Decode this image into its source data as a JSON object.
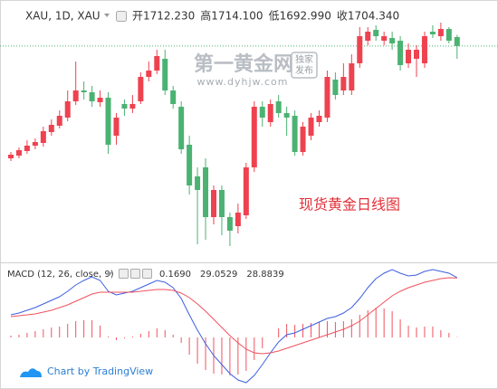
{
  "chart_data": [
    {
      "type": "candlestick",
      "title": "XAU, 1D, XAU",
      "annotation": "现货黄金日线图",
      "watermark": {
        "brand": "第一黄金网",
        "badge": [
          "独家",
          "发布"
        ],
        "site": "www.dyhjw.com"
      },
      "up_color": "#ee4250",
      "down_color": "#4bb272",
      "price_line_color": "#4bb272",
      "ylim": [
        1517,
        1733
      ],
      "series": [
        {
          "name": "开",
          "values": [
            1605,
            1607.4,
            1611.4,
            1616.2,
            1618.6,
            1628.2,
            1633.8,
            1641,
            1655.4,
            1665,
            1663.4,
            1654.6,
            1658.6,
            1625,
            1653,
            1649,
            1655.4,
            1677,
            1682.6,
            1693,
            1665,
            1650.6,
            1617,
            1589,
            1597,
            1553,
            1577,
            1553,
            1545,
            1554.6,
            1597,
            1650.6,
            1637,
            1655.4,
            1645,
            1642.6,
            1610.6,
            1625,
            1637,
            1641,
            1674.6,
            1665,
            1665,
            1689,
            1709,
            1718.6,
            1709,
            1711.4,
            1709,
            1689,
            1693,
            1689,
            1717,
            1713,
            1719.4,
            1712.23
          ],
          "value_labels": [
            null,
            null,
            null,
            null,
            null,
            null,
            null,
            null,
            null,
            null,
            null,
            null,
            null,
            null,
            null,
            null,
            null,
            null,
            null,
            null,
            null,
            null,
            null,
            null,
            null,
            null,
            null,
            null,
            null,
            null,
            null,
            null,
            null,
            null,
            null,
            null,
            null,
            null,
            null,
            null,
            null,
            null,
            null,
            null,
            null,
            null,
            null,
            null,
            null,
            null,
            null,
            null,
            null,
            null,
            null,
            "1712.230"
          ]
        },
        {
          "name": "高",
          "values": [
            1610.6,
            1614.6,
            1621,
            1622.6,
            1633,
            1639.4,
            1647.4,
            1665,
            1690.6,
            1673,
            1669,
            1665,
            1663.4,
            1645,
            1657,
            1661,
            1681,
            1690.6,
            1701,
            1701,
            1669,
            1655.4,
            1625,
            1597,
            1605,
            1581,
            1581,
            1557,
            1565,
            1601,
            1655.4,
            1655.4,
            1657,
            1661,
            1650.6,
            1647.4,
            1637,
            1645,
            1647.4,
            1682.6,
            1681,
            1689,
            1697,
            1721,
            1721,
            1722.6,
            1717,
            1717,
            1713,
            1706.6,
            1705,
            1717,
            1722.6,
            1725,
            1721,
            1714.1
          ],
          "value_labels": [
            null,
            null,
            null,
            null,
            null,
            null,
            null,
            null,
            null,
            null,
            null,
            null,
            null,
            null,
            null,
            null,
            null,
            null,
            null,
            null,
            null,
            null,
            null,
            null,
            null,
            null,
            null,
            null,
            null,
            null,
            null,
            null,
            null,
            null,
            null,
            null,
            null,
            null,
            null,
            null,
            null,
            null,
            null,
            null,
            null,
            null,
            null,
            null,
            null,
            null,
            null,
            null,
            null,
            null,
            null,
            "1714.100"
          ]
        },
        {
          "name": "低",
          "values": [
            1602.6,
            1605,
            1609,
            1613,
            1615.4,
            1625,
            1631.4,
            1637.8,
            1652.2,
            1657,
            1650.6,
            1650.6,
            1609,
            1617,
            1642.6,
            1645,
            1653,
            1673,
            1679.4,
            1661,
            1649,
            1609,
            1573,
            1529,
            1533,
            1546.6,
            1537,
            1527.4,
            1538.6,
            1551.4,
            1593,
            1633,
            1633,
            1641,
            1625,
            1607.4,
            1607.4,
            1621,
            1633,
            1637,
            1657,
            1661,
            1661,
            1685,
            1705,
            1709,
            1705,
            1701,
            1682.6,
            1685,
            1677,
            1685,
            1711.4,
            1709,
            1706.6,
            1692.99
          ],
          "value_labels": [
            null,
            null,
            null,
            null,
            null,
            null,
            null,
            null,
            null,
            null,
            null,
            null,
            null,
            null,
            null,
            null,
            null,
            null,
            null,
            null,
            null,
            null,
            null,
            null,
            null,
            null,
            null,
            null,
            null,
            null,
            null,
            null,
            null,
            null,
            null,
            null,
            null,
            null,
            null,
            null,
            null,
            null,
            null,
            null,
            null,
            null,
            null,
            null,
            null,
            null,
            null,
            null,
            null,
            null,
            null,
            "1692.990"
          ]
        },
        {
          "name": "收",
          "values": [
            1608.2,
            1612.2,
            1616.2,
            1619.4,
            1629,
            1634.6,
            1642.6,
            1655.4,
            1665,
            1663.4,
            1655.4,
            1658.6,
            1617,
            1641,
            1649,
            1653,
            1677,
            1682.6,
            1695.4,
            1665,
            1653,
            1613,
            1581,
            1577,
            1553,
            1577,
            1553,
            1541,
            1557,
            1597,
            1650.6,
            1641,
            1653,
            1645,
            1641,
            1610.6,
            1633,
            1641,
            1642.6,
            1677,
            1661,
            1677,
            1689,
            1713,
            1717,
            1713,
            1713,
            1706.6,
            1687.4,
            1701,
            1701,
            1713,
            1714.6,
            1719.4,
            1709,
            1704.34
          ],
          "value_labels": [
            null,
            null,
            null,
            null,
            null,
            null,
            null,
            null,
            null,
            null,
            null,
            null,
            null,
            null,
            null,
            null,
            null,
            null,
            null,
            null,
            null,
            null,
            null,
            null,
            null,
            null,
            null,
            null,
            null,
            null,
            null,
            null,
            null,
            null,
            null,
            null,
            null,
            null,
            null,
            null,
            null,
            null,
            null,
            null,
            null,
            null,
            null,
            null,
            null,
            null,
            null,
            null,
            null,
            null,
            null,
            "1704.340"
          ]
        }
      ]
    },
    {
      "type": "macd",
      "title": "MACD (12, 26, close, 9)",
      "ylim": [
        -24.2,
        34.32
      ],
      "series": [
        {
          "color": "#f0525e",
          "style": "histogram",
          "values": [
            0.88,
            1.32,
            2.2,
            3.08,
            3.96,
            4.84,
            5.28,
            6.6,
            7.92,
            8.36,
            8.36,
            5.72,
            0.44,
            -1.32,
            -0.44,
            0.44,
            1.76,
            3.08,
            4.4,
            3.52,
            1.32,
            -2.64,
            -8.36,
            -12.76,
            -15.84,
            -17.6,
            -18.04,
            -18.48,
            -18.04,
            -16.28,
            -11,
            -5.28,
            0,
            4.4,
            6.6,
            6.16,
            6.6,
            7.04,
            7.48,
            7.92,
            7.48,
            7.92,
            8.8,
            11,
            13.2,
            14.52,
            14.08,
            12.76,
            8.8,
            5.72,
            4.84,
            5.28,
            5.28,
            3.52,
            2.2,
            0.169
          ],
          "value_labels": [
            null,
            null,
            null,
            null,
            null,
            null,
            null,
            null,
            null,
            null,
            null,
            null,
            null,
            null,
            null,
            null,
            null,
            null,
            null,
            null,
            null,
            null,
            null,
            null,
            null,
            null,
            null,
            null,
            null,
            null,
            null,
            null,
            null,
            null,
            null,
            null,
            null,
            null,
            null,
            null,
            null,
            null,
            null,
            null,
            null,
            null,
            null,
            null,
            null,
            null,
            null,
            null,
            null,
            null,
            null,
            "0.1690"
          ]
        },
        {
          "color": "#3d5fe0",
          "style": "line",
          "values": [
            11,
            11.88,
            13.2,
            14.52,
            16.28,
            18.04,
            19.8,
            22.44,
            25.52,
            27.72,
            29.48,
            27.72,
            22.44,
            20.68,
            21.56,
            22.44,
            24.2,
            25.96,
            27.72,
            26.84,
            24.2,
            18.92,
            11,
            3.52,
            -3.08,
            -8.8,
            -13.2,
            -17.6,
            -20.68,
            -22,
            -18.48,
            -13.2,
            -7.48,
            -2.2,
            1.32,
            2.2,
            3.96,
            5.72,
            7.48,
            9.24,
            10.12,
            11.88,
            14.52,
            18.92,
            24.2,
            28.6,
            31.24,
            33,
            31.24,
            29.92,
            30.36,
            32.12,
            33,
            32.12,
            31.24,
            29.0529
          ]
        },
        {
          "color": "#f0525e",
          "style": "line",
          "values": [
            10.12,
            10.56,
            11,
            11.44,
            12.32,
            13.2,
            14.52,
            15.84,
            17.6,
            19.36,
            21.12,
            22,
            22,
            22,
            22,
            22,
            22.44,
            22.88,
            23.32,
            23.32,
            22.88,
            21.56,
            19.36,
            16.28,
            12.76,
            8.8,
            4.84,
            0.88,
            -2.64,
            -5.72,
            -7.48,
            -7.92,
            -7.48,
            -6.6,
            -5.28,
            -3.96,
            -2.64,
            -1.32,
            0,
            1.32,
            2.64,
            3.96,
            5.72,
            7.92,
            11,
            14.08,
            17.16,
            20.24,
            22.44,
            24.2,
            25.52,
            26.84,
            27.72,
            28.6,
            29.04,
            28.8839
          ]
        }
      ]
    }
  ],
  "footer": "Chart by TradingView"
}
